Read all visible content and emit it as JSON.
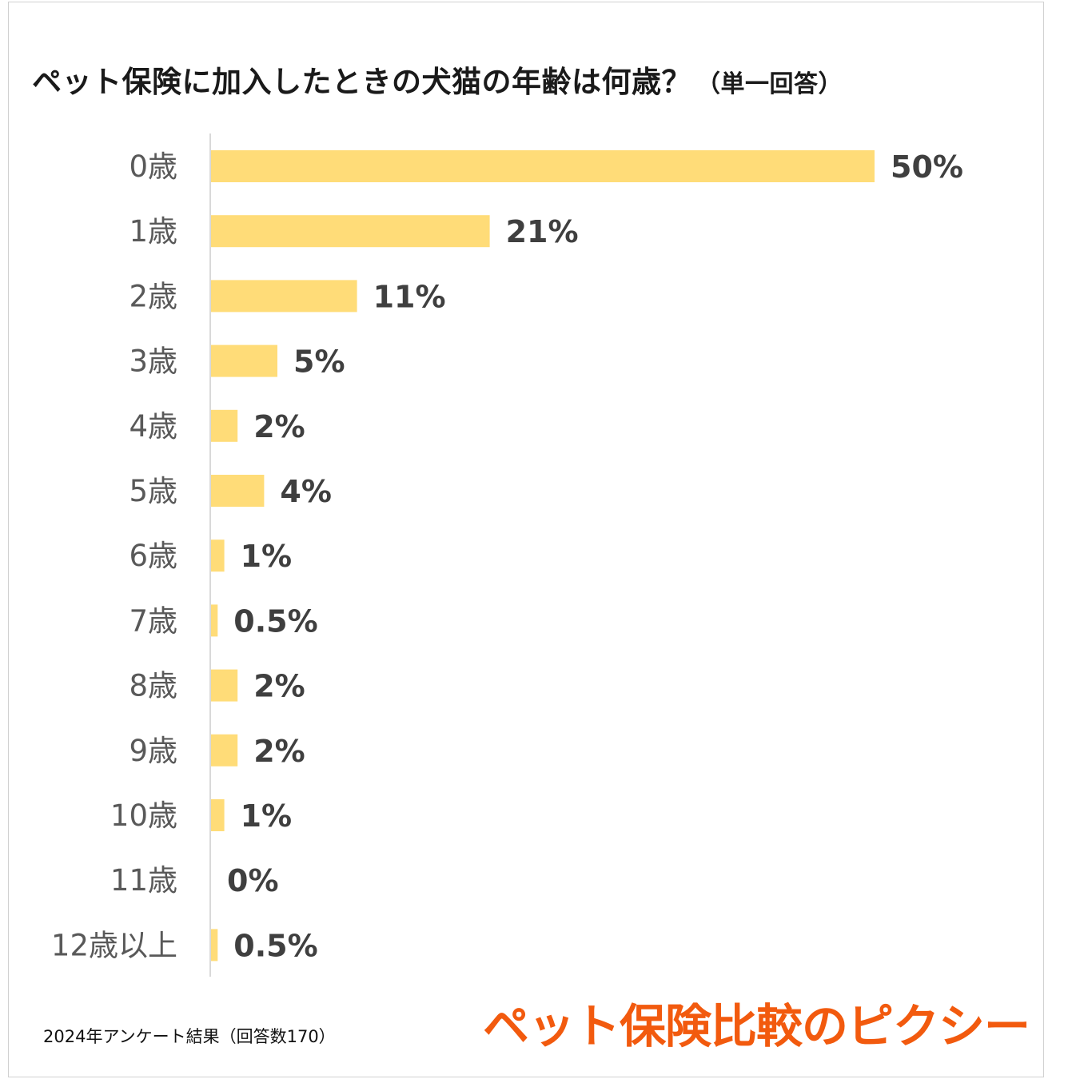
{
  "title": "ペット保険に加入したときの犬猫の年齢は何歳？",
  "subtitle": "（単一回答）",
  "chart_data": {
    "type": "bar",
    "orientation": "horizontal",
    "title": "ペット保険に加入したときの犬猫の年齢は何歳？（単一回答）",
    "categories": [
      "0歳",
      "1歳",
      "2歳",
      "3歳",
      "4歳",
      "5歳",
      "6歳",
      "7歳",
      "8歳",
      "9歳",
      "10歳",
      "11歳",
      "12歳以上"
    ],
    "values": [
      50,
      21,
      11,
      5,
      2,
      4,
      1,
      0.5,
      2,
      2,
      1,
      0,
      0.5
    ],
    "labels": [
      "50%",
      "21%",
      "11%",
      "5%",
      "2%",
      "4%",
      "1%",
      "0.5%",
      "2%",
      "2%",
      "1%",
      "0%",
      "0.5%"
    ],
    "xlim": [
      0,
      50
    ],
    "xlabel": "",
    "ylabel": "",
    "bar_color": "#FFDC78",
    "grid": false,
    "legend": "none"
  },
  "footnote": "2024年アンケート結果（回答数170）",
  "brand": "ペット保険比較のピクシー",
  "colors": {
    "bar": "#FFDC78",
    "brand": "#F25A0E",
    "label": "#3F3F3F",
    "category": "#595959"
  }
}
